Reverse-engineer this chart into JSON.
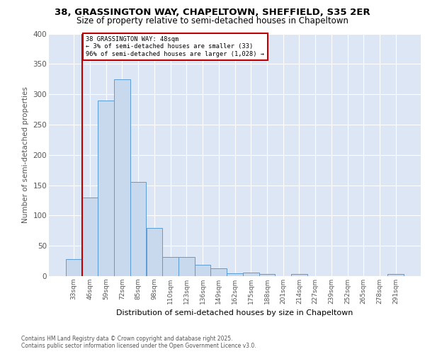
{
  "title1": "38, GRASSINGTON WAY, CHAPELTOWN, SHEFFIELD, S35 2ER",
  "title2": "Size of property relative to semi-detached houses in Chapeltown",
  "xlabel": "Distribution of semi-detached houses by size in Chapeltown",
  "ylabel": "Number of semi-detached properties",
  "bin_labels": [
    "33sqm",
    "46sqm",
    "59sqm",
    "72sqm",
    "85sqm",
    "98sqm",
    "110sqm",
    "123sqm",
    "136sqm",
    "149sqm",
    "162sqm",
    "175sqm",
    "188sqm",
    "201sqm",
    "214sqm",
    "227sqm",
    "239sqm",
    "252sqm",
    "265sqm",
    "278sqm",
    "291sqm"
  ],
  "bar_values": [
    28,
    130,
    290,
    325,
    155,
    79,
    31,
    31,
    19,
    13,
    5,
    6,
    4,
    0,
    3,
    0,
    0,
    0,
    0,
    0,
    3
  ],
  "bar_color": "#c8d9ee",
  "bar_edge_color": "#5b9bd5",
  "vline_color": "#c00000",
  "annotation_title": "38 GRASSINGTON WAY: 48sqm",
  "annotation_line2": "← 3% of semi-detached houses are smaller (33)",
  "annotation_line3": "96% of semi-detached houses are larger (1,028) →",
  "annotation_box_color": "#c00000",
  "ylim": [
    0,
    400
  ],
  "yticks": [
    0,
    50,
    100,
    150,
    200,
    250,
    300,
    350,
    400
  ],
  "footer1": "Contains HM Land Registry data © Crown copyright and database right 2025.",
  "footer2": "Contains public sector information licensed under the Open Government Licence v3.0.",
  "plot_bg_color": "#dce6f5",
  "fig_bg_color": "#ffffff",
  "grid_color": "#ffffff",
  "title1_fontsize": 9.5,
  "title2_fontsize": 8.5,
  "ylabel_fontsize": 7.5,
  "xlabel_fontsize": 8.0,
  "ytick_fontsize": 7.5,
  "xtick_fontsize": 6.5
}
